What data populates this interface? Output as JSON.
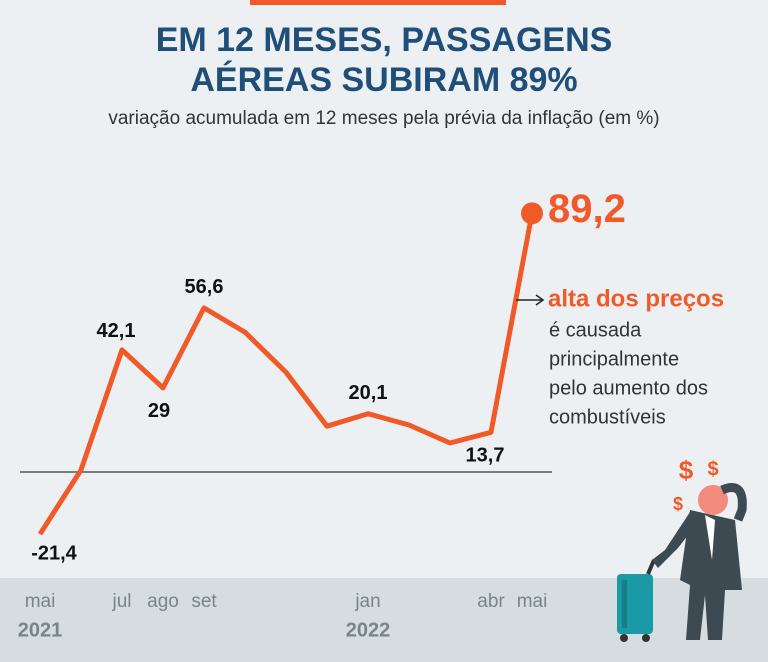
{
  "chart_data": {
    "type": "line",
    "title_lines": [
      "EM 12 MESES, PASSAGENS",
      "AÉREAS SUBIRAM 89%"
    ],
    "subtitle": "variação acumulada em 12 meses pela prévia da inflação (em %)",
    "categories": [
      "mai",
      null,
      "jul",
      "ago",
      "set",
      null,
      null,
      null,
      "jan",
      null,
      null,
      "abr",
      "mai"
    ],
    "year_labels": [
      "2021",
      null,
      null,
      null,
      null,
      null,
      null,
      null,
      "2022",
      null,
      null,
      null,
      null
    ],
    "values": [
      -21.4,
      0.7,
      42.1,
      29,
      56.6,
      48.2,
      34.4,
      15.8,
      20.1,
      16.2,
      10,
      13.7,
      89.2
    ],
    "value_labels": [
      "-21,4",
      null,
      "42,1",
      "29",
      "56,6",
      null,
      null,
      null,
      "20,1",
      null,
      null,
      "13,7",
      "89,2"
    ],
    "color": "#f05a28",
    "ylim": [
      -30,
      100
    ],
    "annotation": {
      "title": "alta dos preços",
      "lines": [
        "é causada",
        "principalmente",
        "pelo aumento dos",
        "combustíveis"
      ]
    }
  }
}
